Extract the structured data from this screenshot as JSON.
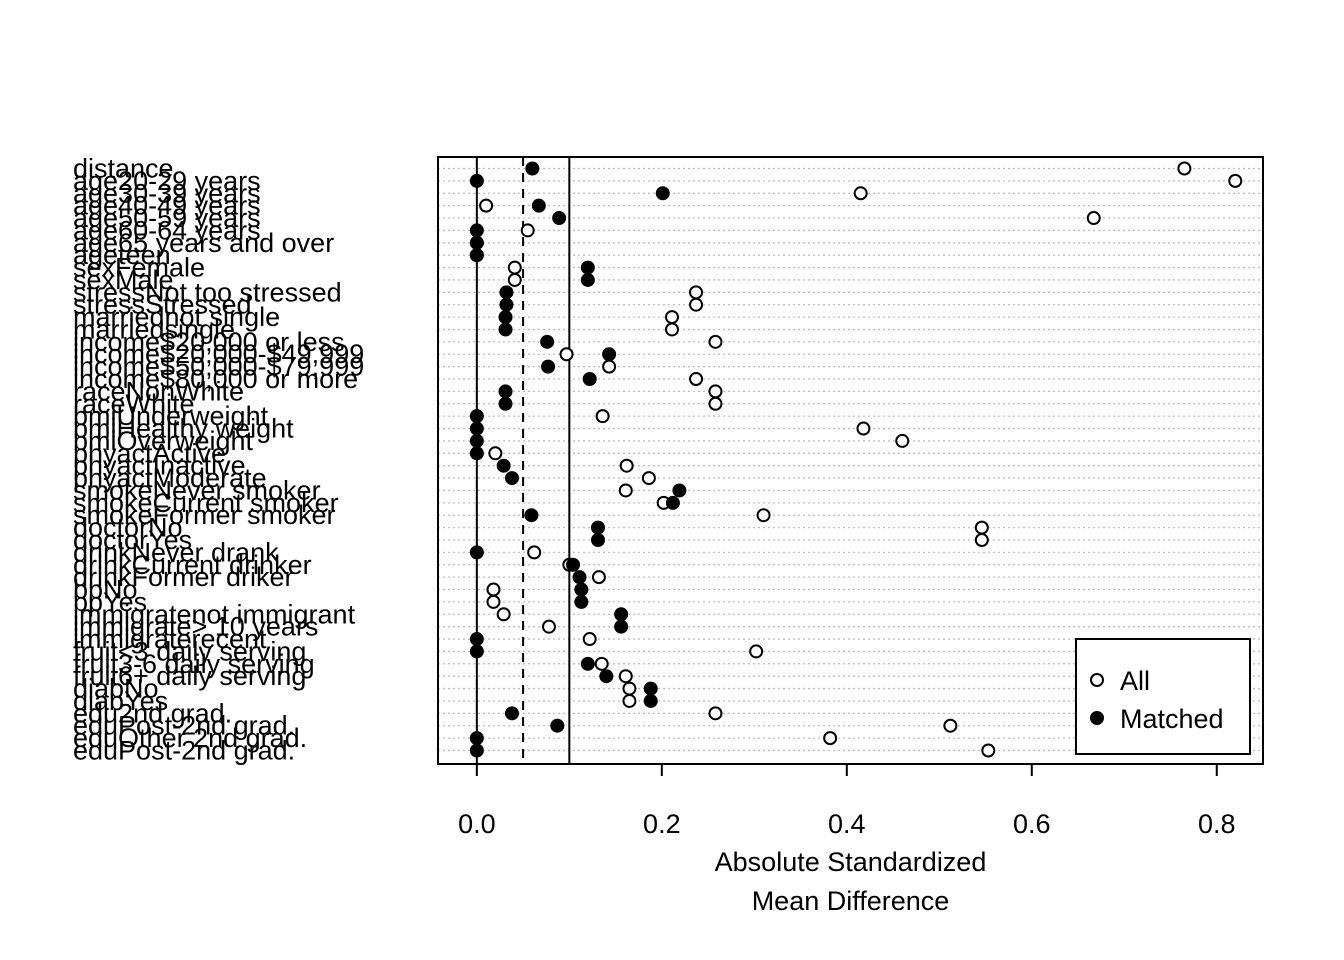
{
  "chart_data": {
    "type": "scatter",
    "xlabel_lines": [
      "Absolute Standardized",
      "Mean Difference"
    ],
    "xlim": [
      -0.042,
      0.85
    ],
    "x_ticks": [
      0.0,
      0.2,
      0.4,
      0.6,
      0.8
    ],
    "x_tick_labels": [
      "0.0",
      "0.2",
      "0.4",
      "0.6",
      "0.8"
    ],
    "reference_lines": [
      {
        "x": 0,
        "style": "solid"
      },
      {
        "x": 0.05,
        "style": "dashed"
      },
      {
        "x": 0.1,
        "style": "solid"
      }
    ],
    "grid": "horizontal dotted",
    "legend": {
      "position": "bottom-right",
      "items": [
        "All",
        "Matched"
      ]
    },
    "categories": [
      "distance",
      "age20-29 years",
      "age30-39 years",
      "age40-49 years",
      "age50-59 years",
      "age60-64 years",
      "age65 years and over",
      "ageteen",
      "sexFemale",
      "sexMale",
      "stressNot too stressed",
      "stressStressed",
      "marriednot single",
      "marriedsingle",
      "income$20,000 or less",
      "income$20,000-$49,999",
      "income$50,000-$79,999",
      "income$80,000 or more",
      "raceNonWhite",
      "raceWhite",
      "bmiUnderweight",
      "bmiHealthy weight",
      "bmiOverweight",
      "phyactActive",
      "phyactInactive",
      "phyactModerate",
      "smokeNever smoker",
      "smokeCurrent smoker",
      "smokeFormer smoker",
      "doctorNo",
      "doctorYes",
      "drinkNever drank",
      "drinkCurrent drinker",
      "drinkFormer driker",
      "bpNo",
      "bpYes",
      "immigratenot immigrant",
      "immigrate> 10 years",
      "immigraterecent",
      "fruit<3 daily serving",
      "fruit3-6 daily serving",
      "fruit6+ daily serving",
      "diabNo",
      "diabYes",
      "edu2nd grad.",
      "eduPost-2nd grad.",
      "eduOther 2nd grad.",
      "eduPost-2nd grad."
    ],
    "series": [
      {
        "name": "All",
        "marker": "open circle",
        "values": [
          0.765,
          0.82,
          0.415,
          0.01,
          0.667,
          0.055,
          0.0,
          0.0,
          0.041,
          0.041,
          0.237,
          0.237,
          0.211,
          0.211,
          0.258,
          0.097,
          0.143,
          0.237,
          0.258,
          0.258,
          0.136,
          0.418,
          0.46,
          0.02,
          0.162,
          0.186,
          0.161,
          0.202,
          0.31,
          0.546,
          0.546,
          0.062,
          0.1,
          0.132,
          0.018,
          0.018,
          0.029,
          0.078,
          0.122,
          0.302,
          0.135,
          0.161,
          0.165,
          0.165,
          0.258,
          0.512,
          0.382,
          0.553
        ]
      },
      {
        "name": "Matched",
        "marker": "filled circle",
        "values": [
          0.06,
          0.0,
          0.201,
          0.067,
          0.089,
          0.0,
          0.0,
          0.0,
          0.12,
          0.12,
          0.032,
          0.032,
          0.031,
          0.031,
          0.076,
          0.143,
          0.077,
          0.122,
          0.031,
          0.031,
          0.0,
          0.0,
          0.0,
          0.0,
          0.029,
          0.038,
          0.219,
          0.212,
          0.059,
          0.131,
          0.131,
          0.0,
          0.104,
          0.111,
          0.113,
          0.113,
          0.156,
          0.156,
          0.0,
          0.0,
          0.12,
          0.14,
          0.188,
          0.188,
          0.038,
          0.087,
          0.0,
          0.0
        ]
      }
    ]
  }
}
